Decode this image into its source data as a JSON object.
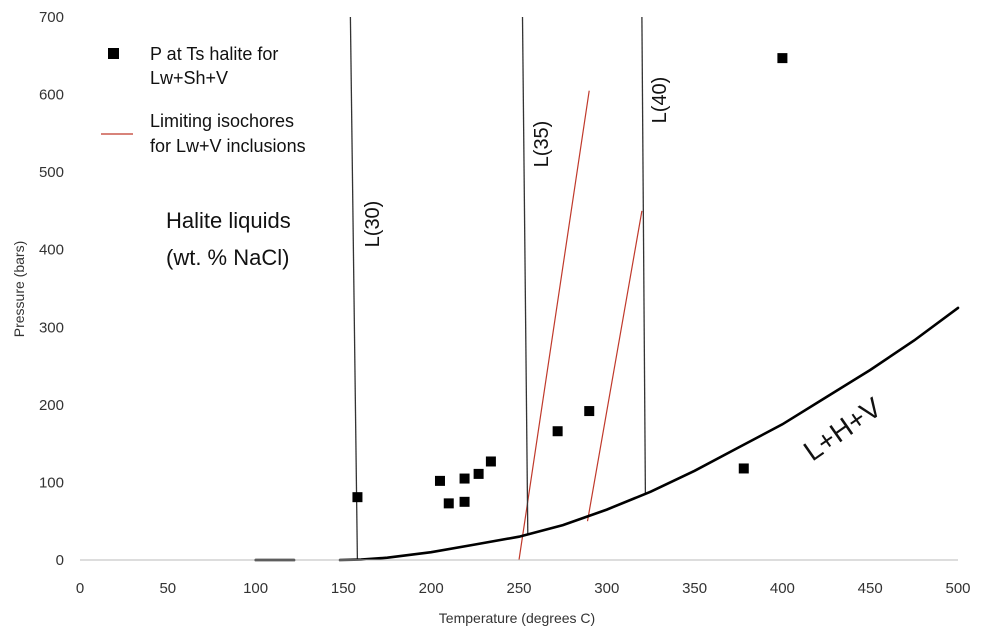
{
  "chart_data": {
    "type": "scatter",
    "xlabel": "Temperature (degrees C)",
    "ylabel": "Pressure (bars)",
    "xlim": [
      0,
      500
    ],
    "ylim": [
      0,
      700
    ],
    "xticks": [
      0,
      50,
      100,
      150,
      200,
      250,
      300,
      350,
      400,
      450,
      500
    ],
    "yticks": [
      0,
      100,
      200,
      300,
      400,
      500,
      600,
      700
    ],
    "grid": false,
    "legend_position": "top-left",
    "legend": [
      {
        "key": "points",
        "label_lines": [
          "P at Ts halite for",
          "Lw+Sh+V"
        ]
      },
      {
        "key": "isochores",
        "label_lines": [
          "Limiting isochores",
          "for Lw+V inclusions"
        ]
      }
    ],
    "series": [
      {
        "key": "points",
        "kind": "scatter",
        "marker": "square",
        "color": "#000000",
        "points": [
          {
            "x": 158,
            "y": 81
          },
          {
            "x": 205,
            "y": 102
          },
          {
            "x": 210,
            "y": 73
          },
          {
            "x": 219,
            "y": 105
          },
          {
            "x": 219,
            "y": 75
          },
          {
            "x": 227,
            "y": 111
          },
          {
            "x": 234,
            "y": 127
          },
          {
            "x": 272,
            "y": 166
          },
          {
            "x": 290,
            "y": 192
          },
          {
            "x": 378,
            "y": 118
          },
          {
            "x": 400,
            "y": 647
          }
        ]
      },
      {
        "key": "isochores",
        "kind": "line",
        "color": "#c0392b",
        "lines": [
          [
            {
              "x": 250,
              "y": 0
            },
            {
              "x": 290,
              "y": 605
            }
          ],
          [
            {
              "x": 289,
              "y": 50
            },
            {
              "x": 320,
              "y": 450
            }
          ]
        ]
      },
      {
        "key": "liquidus",
        "kind": "line",
        "color": "#333333",
        "lines": [
          {
            "label": "L(30)",
            "points": [
              {
                "x": 154,
                "y": 700
              },
              {
                "x": 158,
                "y": 0
              }
            ]
          },
          {
            "label": "L(35)",
            "points": [
              {
                "x": 252,
                "y": 700
              },
              {
                "x": 255,
                "y": 33
              }
            ]
          },
          {
            "label": "L(40)",
            "points": [
              {
                "x": 320,
                "y": 700
              },
              {
                "x": 322,
                "y": 84
              }
            ]
          }
        ]
      },
      {
        "key": "lhv",
        "kind": "line",
        "color": "#000000",
        "label": "L+H+V",
        "segments": [
          [
            {
              "x": 100,
              "y": 0
            },
            {
              "x": 122,
              "y": 0
            }
          ],
          [
            {
              "x": 148,
              "y": 0
            },
            {
              "x": 160,
              "y": 0.5
            },
            {
              "x": 175,
              "y": 3
            },
            {
              "x": 200,
              "y": 10
            },
            {
              "x": 225,
              "y": 20
            },
            {
              "x": 250,
              "y": 30
            },
            {
              "x": 275,
              "y": 45
            },
            {
              "x": 300,
              "y": 65
            },
            {
              "x": 325,
              "y": 88
            },
            {
              "x": 350,
              "y": 115
            },
            {
              "x": 375,
              "y": 145
            },
            {
              "x": 400,
              "y": 175
            },
            {
              "x": 425,
              "y": 210
            },
            {
              "x": 450,
              "y": 245
            },
            {
              "x": 475,
              "y": 283
            },
            {
              "x": 500,
              "y": 325
            }
          ]
        ]
      }
    ],
    "annotations": {
      "region_lines": [
        "Halite liquids",
        "(wt. % NaCl)"
      ],
      "lhv_label": "L+H+V"
    }
  }
}
